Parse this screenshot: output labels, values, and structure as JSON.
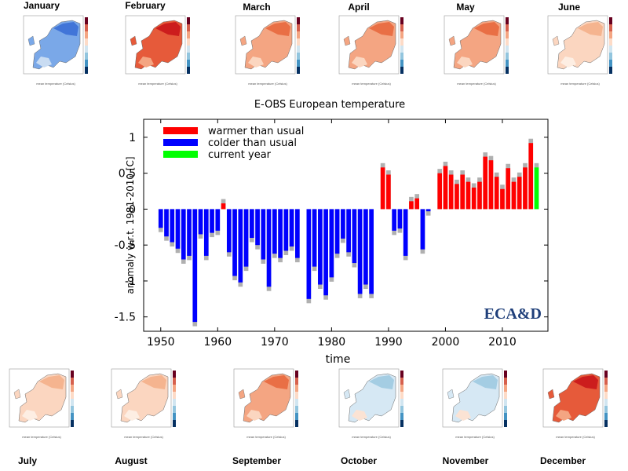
{
  "months_top": [
    "January",
    "February",
    "March",
    "April",
    "May",
    "June"
  ],
  "months_bottom": [
    "July",
    "August",
    "September",
    "October",
    "November",
    "December"
  ],
  "thumb_caption": "mean temperature (Celsius)",
  "thumb_tints": {
    "January": "cold",
    "February": "hot",
    "March": "warm",
    "April": "warm",
    "May": "warm",
    "June": "mild",
    "July": "mild",
    "August": "mild",
    "September": "warm",
    "October": "cool",
    "November": "cool",
    "December": "hot"
  },
  "chart_data": {
    "type": "bar",
    "title": "E-OBS European temperature",
    "xlabel": "time",
    "ylabel": "anomaly w.r.t. 1981-2010 [C]",
    "xlim": [
      1947,
      2018
    ],
    "ylim": [
      -1.7,
      1.25
    ],
    "xticks": [
      1950,
      1960,
      1970,
      1980,
      1990,
      2000,
      2010
    ],
    "yticks": [
      1,
      0.5,
      0,
      -0.5,
      -1,
      -1.5
    ],
    "legend": [
      "warmer than usual",
      "colder than usual",
      "current year"
    ],
    "legend_position": "top-left",
    "colors": {
      "warm": "#ff0000",
      "cold": "#0000ff",
      "current": "#00ff00",
      "uncertainty": "#b0b0b0"
    },
    "watermark": "ECA&D",
    "years": [
      1950,
      1951,
      1952,
      1953,
      1954,
      1955,
      1956,
      1957,
      1958,
      1959,
      1960,
      1961,
      1962,
      1963,
      1964,
      1965,
      1966,
      1967,
      1968,
      1969,
      1970,
      1971,
      1972,
      1973,
      1974,
      1975,
      1976,
      1977,
      1978,
      1979,
      1980,
      1981,
      1982,
      1983,
      1984,
      1985,
      1986,
      1987,
      1988,
      1989,
      1990,
      1991,
      1992,
      1993,
      1994,
      1995,
      1996,
      1997,
      1998,
      1999,
      2000,
      2001,
      2002,
      2003,
      2004,
      2005,
      2006,
      2007,
      2008,
      2009,
      2010,
      2011,
      2012,
      2013,
      2014,
      2015,
      2016
    ],
    "values": [
      -0.26,
      -0.38,
      -0.46,
      -0.55,
      -0.7,
      -0.65,
      -1.57,
      -0.35,
      -0.65,
      -0.33,
      -0.3,
      0.08,
      -0.6,
      -0.93,
      -1.02,
      -0.8,
      -0.4,
      -0.5,
      -0.7,
      -1.08,
      -0.62,
      -0.68,
      -0.58,
      -0.52,
      -0.68,
      0.0,
      -1.25,
      -0.8,
      -1.05,
      -1.2,
      -0.95,
      -0.62,
      -0.41,
      -0.6,
      -0.75,
      -1.18,
      -1.05,
      -1.18,
      0.0,
      0.58,
      0.48,
      -0.3,
      -0.27,
      -0.65,
      0.11,
      0.15,
      -0.56,
      -0.03,
      0.0,
      0.5,
      0.6,
      0.48,
      0.35,
      0.48,
      0.38,
      0.3,
      0.38,
      0.73,
      0.68,
      0.45,
      0.28,
      0.57,
      0.38,
      0.45,
      0.58,
      0.92,
      0.58
    ],
    "current_year": 2016
  }
}
